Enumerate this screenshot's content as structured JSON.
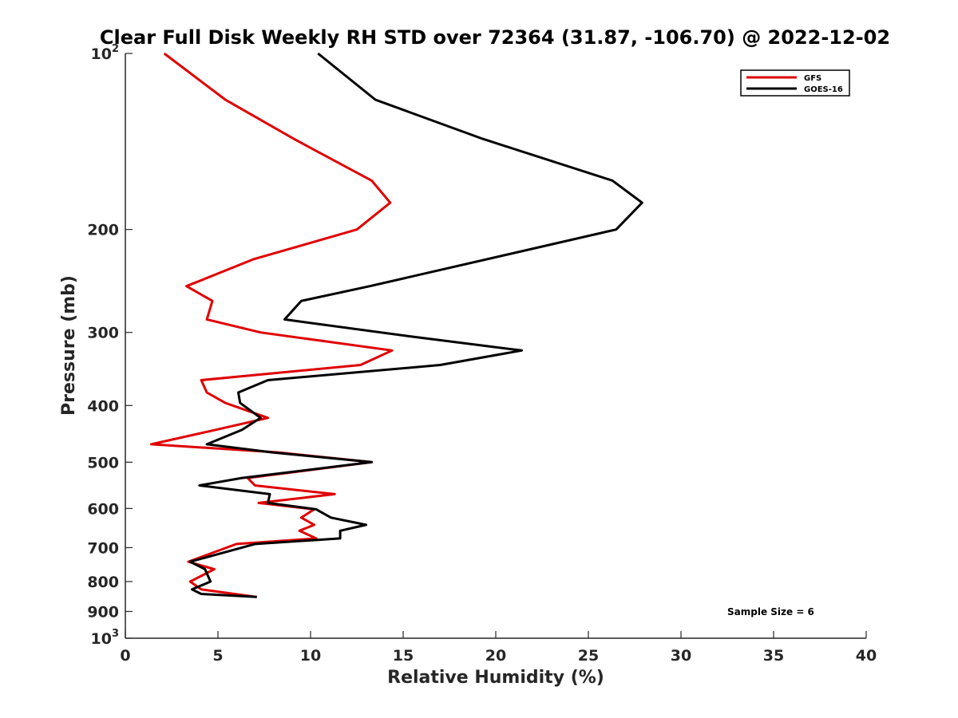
{
  "chart_data": {
    "type": "line",
    "title": "Clear Full Disk Weekly RH STD over 72364 (31.87, -106.70) @ 2022-12-02",
    "xlabel": "Relative Humidity (%)",
    "ylabel": "Pressure (mb)",
    "xlim": [
      0,
      40
    ],
    "ylim": [
      100,
      1000
    ],
    "y_scale": "log",
    "y_reversed": true,
    "x_ticks": [
      "0",
      "5",
      "10",
      "15",
      "20",
      "25",
      "30",
      "35",
      "40"
    ],
    "y_ticks": [
      {
        "value": 100,
        "base": "10",
        "exp": "2"
      },
      {
        "value": 200,
        "base": "200",
        "exp": ""
      },
      {
        "value": 300,
        "base": "300",
        "exp": ""
      },
      {
        "value": 400,
        "base": "400",
        "exp": ""
      },
      {
        "value": 500,
        "base": "500",
        "exp": ""
      },
      {
        "value": 600,
        "base": "600",
        "exp": ""
      },
      {
        "value": 700,
        "base": "700",
        "exp": ""
      },
      {
        "value": 800,
        "base": "800",
        "exp": ""
      },
      {
        "value": 900,
        "base": "900",
        "exp": ""
      },
      {
        "value": 1000,
        "base": "10",
        "exp": "3"
      }
    ],
    "grid": false,
    "legend_position": "top-right",
    "annotation": "Sample Size = 6",
    "series": [
      {
        "name": "GFS",
        "color": "#e00000",
        "points": [
          [
            2.1,
            100
          ],
          [
            5.4,
            120
          ],
          [
            9.1,
            140
          ],
          [
            13.3,
            165
          ],
          [
            14.3,
            180
          ],
          [
            12.5,
            200
          ],
          [
            6.9,
            225
          ],
          [
            3.3,
            250
          ],
          [
            4.7,
            265
          ],
          [
            4.4,
            285
          ],
          [
            7.3,
            300
          ],
          [
            14.4,
            322
          ],
          [
            12.7,
            341
          ],
          [
            4.1,
            362
          ],
          [
            4.4,
            380
          ],
          [
            5.4,
            396
          ],
          [
            7.7,
            420
          ],
          [
            4.9,
            440
          ],
          [
            1.4,
            466
          ],
          [
            8.2,
            481
          ],
          [
            13.3,
            500
          ],
          [
            6.6,
            532
          ],
          [
            7.0,
            548
          ],
          [
            11.3,
            567
          ],
          [
            7.2,
            587
          ],
          [
            10.2,
            602
          ],
          [
            9.5,
            622
          ],
          [
            10.2,
            640
          ],
          [
            9.4,
            655
          ],
          [
            10.3,
            675
          ],
          [
            6.0,
            690
          ],
          [
            3.4,
            740
          ],
          [
            4.8,
            762
          ],
          [
            3.5,
            800
          ],
          [
            4.1,
            825
          ],
          [
            7.1,
            850
          ]
        ]
      },
      {
        "name": "GOES-16",
        "color": "#000000",
        "points": [
          [
            10.4,
            100
          ],
          [
            13.5,
            120
          ],
          [
            19.3,
            140
          ],
          [
            26.3,
            165
          ],
          [
            27.9,
            180
          ],
          [
            26.5,
            200
          ],
          [
            13.2,
            250
          ],
          [
            9.5,
            265
          ],
          [
            8.6,
            285
          ],
          [
            15.5,
            305
          ],
          [
            21.4,
            322
          ],
          [
            17.0,
            341
          ],
          [
            7.7,
            362
          ],
          [
            6.1,
            380
          ],
          [
            6.2,
            396
          ],
          [
            7.3,
            420
          ],
          [
            6.3,
            440
          ],
          [
            4.4,
            466
          ],
          [
            7.9,
            481
          ],
          [
            13.3,
            500
          ],
          [
            6.3,
            532
          ],
          [
            4.0,
            548
          ],
          [
            7.8,
            567
          ],
          [
            7.7,
            587
          ],
          [
            10.3,
            602
          ],
          [
            11.1,
            622
          ],
          [
            13.0,
            640
          ],
          [
            11.6,
            655
          ],
          [
            11.6,
            675
          ],
          [
            7.0,
            690
          ],
          [
            3.5,
            740
          ],
          [
            4.3,
            762
          ],
          [
            4.6,
            800
          ],
          [
            3.6,
            825
          ],
          [
            4.1,
            840
          ],
          [
            7.1,
            850
          ]
        ]
      }
    ]
  }
}
